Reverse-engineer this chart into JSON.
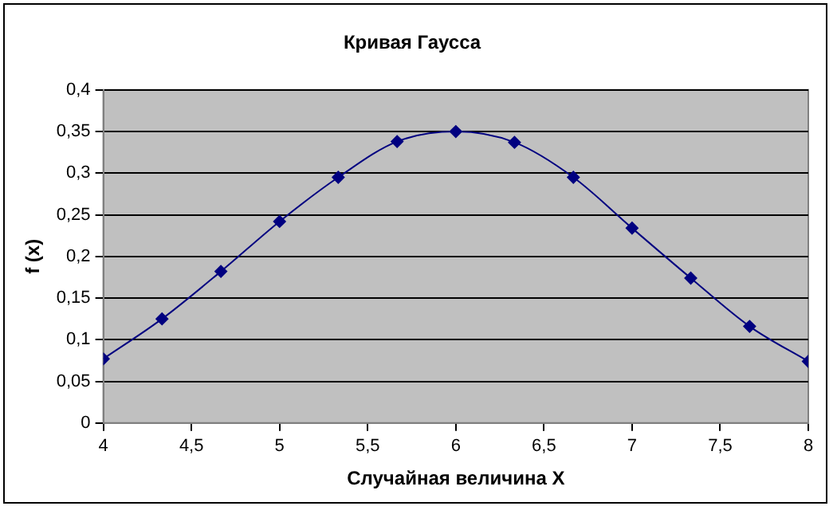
{
  "chart_data": {
    "type": "line",
    "title": "Кривая Гаусса",
    "xlabel": "Случайная величина X",
    "ylabel": "f (x)",
    "x": [
      4,
      4.333,
      4.667,
      5,
      5.333,
      5.667,
      6,
      6.333,
      6.667,
      7,
      7.333,
      7.667,
      8
    ],
    "series": [
      {
        "color": "#000080",
        "values": [
          0.077,
          0.125,
          0.182,
          0.242,
          0.295,
          0.338,
          0.35,
          0.337,
          0.295,
          0.234,
          0.174,
          0.116,
          0.074
        ]
      }
    ],
    "xlim": [
      4,
      8
    ],
    "xticks": [
      4,
      {
        "value": 4.5,
        "label": "4,5"
      },
      5,
      {
        "value": 5.5,
        "label": "5,5"
      },
      6,
      {
        "value": 6.5,
        "label": "6,5"
      },
      7,
      {
        "value": 7.5,
        "label": "7,5"
      },
      8
    ],
    "ylim": [
      0,
      0.4
    ],
    "yticks": [
      0,
      {
        "value": 0.05,
        "label": "0,05"
      },
      {
        "value": 0.1,
        "label": "0,1"
      },
      {
        "value": 0.15,
        "label": "0,15"
      },
      {
        "value": 0.2,
        "label": "0,2"
      },
      {
        "value": 0.25,
        "label": "0,25"
      },
      {
        "value": 0.3,
        "label": "0,3"
      },
      {
        "value": 0.35,
        "label": "0,35"
      },
      {
        "value": 0.4,
        "label": "0,4"
      }
    ],
    "grid": "y",
    "legend": false,
    "marker": "diamond",
    "line_style": "solid"
  }
}
